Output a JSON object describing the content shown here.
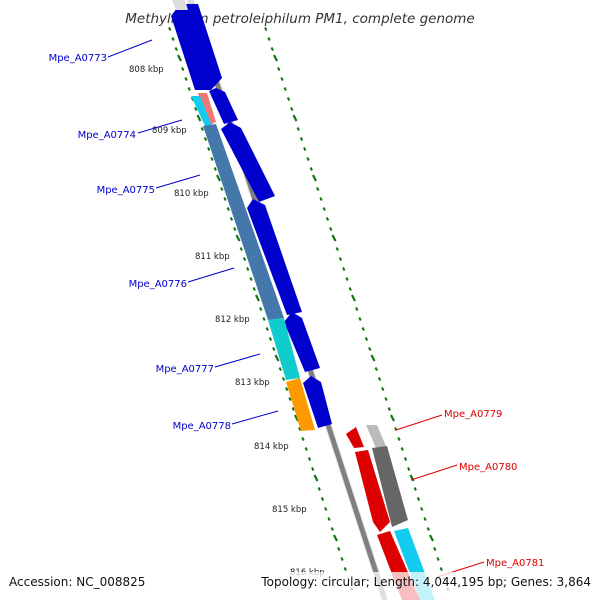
{
  "title": "Methylibium petroleiphilum PM1, complete genome",
  "footer": {
    "accession": "Accession: NC_008825",
    "summary": "Topology: circular; Length: 4,044,195 bp; Genes: 3,864"
  },
  "ticks": [
    {
      "label": "808 kbp",
      "kbp": 808
    },
    {
      "label": "809 kbp",
      "kbp": 809
    },
    {
      "label": "810 kbp",
      "kbp": 810
    },
    {
      "label": "811 kbp",
      "kbp": 811
    },
    {
      "label": "812 kbp",
      "kbp": 812
    },
    {
      "label": "813 kbp",
      "kbp": 813
    },
    {
      "label": "814 kbp",
      "kbp": 814
    },
    {
      "label": "815 kbp",
      "kbp": 815
    },
    {
      "label": "816 kbp",
      "kbp": 816
    }
  ],
  "genes": [
    {
      "name": "Mpe_A0773",
      "strand": "+",
      "color": "#0000cc"
    },
    {
      "name": "Mpe_A0774",
      "strand": "+",
      "color": "#0000cc"
    },
    {
      "name": "Mpe_A0775",
      "strand": "+",
      "color": "#0000cc"
    },
    {
      "name": "Mpe_A0776",
      "strand": "+",
      "color": "#0000cc"
    },
    {
      "name": "Mpe_A0777",
      "strand": "+",
      "color": "#0000cc"
    },
    {
      "name": "Mpe_A0778",
      "strand": "+",
      "color": "#0000cc"
    },
    {
      "name": "Mpe_A0779",
      "strand": "-",
      "color": "#dd0000"
    },
    {
      "name": "Mpe_A0780",
      "strand": "-",
      "color": "#dd0000"
    },
    {
      "name": "Mpe_A0781",
      "strand": "-",
      "color": "#dd0000"
    }
  ],
  "colors": {
    "plus_strand": "#0000cc",
    "minus_strand": "#dd0000",
    "backbone": "#808080",
    "tick": "#117711",
    "feature_light_blue": "#11ccee",
    "feature_steel_blue": "#4477aa",
    "feature_cyan": "#11cccc",
    "feature_orange": "#ff9900",
    "feature_salmon": "#ee7777",
    "feature_gray": "#666666",
    "feature_light_gray": "#bbbbbb"
  }
}
